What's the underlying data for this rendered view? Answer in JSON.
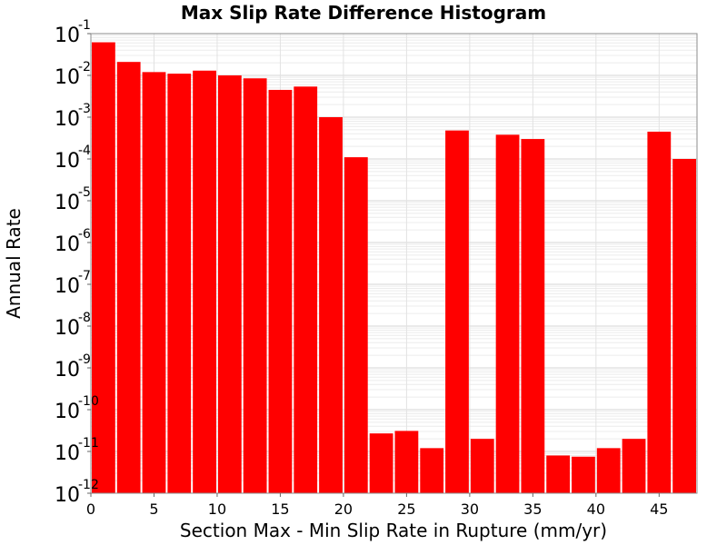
{
  "chart_data": {
    "type": "bar",
    "title": "Max Slip Rate Difference Histogram",
    "xlabel": "Section Max - Min Slip Rate in Rupture (mm/yr)",
    "ylabel": "Annual Rate",
    "y_scale": "log",
    "ylim": [
      1e-12,
      0.1
    ],
    "xlim": [
      0,
      48
    ],
    "bin_width": 2,
    "grid": true,
    "bar_color": "#ff0000",
    "x_ticks": [
      {
        "value": 0,
        "label": "0"
      },
      {
        "value": 5,
        "label": "5"
      },
      {
        "value": 10,
        "label": "10"
      },
      {
        "value": 15,
        "label": "15"
      },
      {
        "value": 20,
        "label": "20"
      },
      {
        "value": 25,
        "label": "25"
      },
      {
        "value": 30,
        "label": "30"
      },
      {
        "value": 35,
        "label": "35"
      },
      {
        "value": 40,
        "label": "40"
      },
      {
        "value": 45,
        "label": "45"
      }
    ],
    "y_ticks": [
      {
        "value": 1e-12,
        "base": "10",
        "exp": "-12"
      },
      {
        "value": 1e-11,
        "base": "10",
        "exp": "-11"
      },
      {
        "value": 1e-10,
        "base": "10",
        "exp": "-10"
      },
      {
        "value": 1e-09,
        "base": "10",
        "exp": "-9"
      },
      {
        "value": 1e-08,
        "base": "10",
        "exp": "-8"
      },
      {
        "value": 1e-07,
        "base": "10",
        "exp": "-7"
      },
      {
        "value": 1e-06,
        "base": "10",
        "exp": "-6"
      },
      {
        "value": 1e-05,
        "base": "10",
        "exp": "-5"
      },
      {
        "value": 0.0001,
        "base": "10",
        "exp": "-4"
      },
      {
        "value": 0.001,
        "base": "10",
        "exp": "-3"
      },
      {
        "value": 0.01,
        "base": "10",
        "exp": "-2"
      },
      {
        "value": 0.1,
        "base": "10",
        "exp": "-1"
      }
    ],
    "bars": [
      {
        "x": 1,
        "value": 0.062
      },
      {
        "x": 3,
        "value": 0.021
      },
      {
        "x": 5,
        "value": 0.012
      },
      {
        "x": 7,
        "value": 0.011
      },
      {
        "x": 9,
        "value": 0.013
      },
      {
        "x": 11,
        "value": 0.01
      },
      {
        "x": 13,
        "value": 0.0085
      },
      {
        "x": 15,
        "value": 0.0045
      },
      {
        "x": 17,
        "value": 0.0054
      },
      {
        "x": 19,
        "value": 0.001
      },
      {
        "x": 21,
        "value": 0.00011
      },
      {
        "x": 23,
        "value": 2.7e-11
      },
      {
        "x": 25,
        "value": 3.1e-11
      },
      {
        "x": 27,
        "value": 1.2e-11
      },
      {
        "x": 29,
        "value": 0.00048
      },
      {
        "x": 31,
        "value": 2e-11
      },
      {
        "x": 33,
        "value": 0.00038
      },
      {
        "x": 35,
        "value": 0.0003
      },
      {
        "x": 37,
        "value": 8e-12
      },
      {
        "x": 39,
        "value": 7.5e-12
      },
      {
        "x": 41,
        "value": 1.2e-11
      },
      {
        "x": 43,
        "value": 2e-11
      },
      {
        "x": 45,
        "value": 0.00045
      },
      {
        "x": 47,
        "value": 0.0001
      }
    ]
  }
}
